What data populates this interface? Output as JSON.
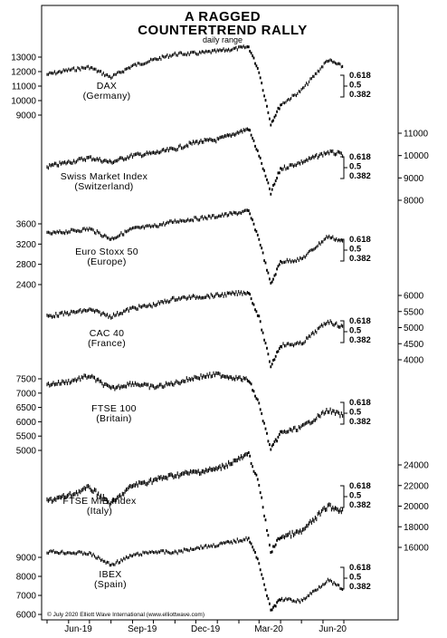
{
  "chart_data": {
    "type": "line",
    "title_line1": "A RAGGED",
    "title_line2": "COUNTERTREND RALLY",
    "subtitle": "daily range",
    "credit": "© July 2020 Elliott Wave International (www.elliottwave.com)",
    "x_ticks": [
      "Jun-19",
      "Sep-19",
      "Dec-19",
      "Mar-20",
      "Jun-20"
    ],
    "fib_levels": [
      "0.618",
      "0.5",
      "0.382"
    ],
    "colors": {
      "line": "#000000",
      "background": "#ffffff"
    },
    "panels": [
      {
        "label_line1": "DAX",
        "label_line2": "(Germany)",
        "axis_side": "left",
        "y_ticks": [
          "13000",
          "12000",
          "11000",
          "10000",
          "9000"
        ],
        "y_tick_values": [
          13000,
          12000,
          11000,
          10000,
          9000
        ],
        "x": [
          "2019-05",
          "2019-06",
          "2019-07",
          "2019-08",
          "2019-09",
          "2019-10",
          "2019-11",
          "2019-12",
          "2020-01",
          "2020-02-15",
          "2020-03-01",
          "2020-03-18",
          "2020-04-01",
          "2020-05-01",
          "2020-06-08",
          "2020-07-01"
        ],
        "values": [
          11800,
          12100,
          12300,
          11600,
          12400,
          12800,
          13200,
          13250,
          13400,
          13700,
          12000,
          8400,
          9700,
          10700,
          12800,
          12300
        ]
      },
      {
        "label_line1": "Swiss Market Index",
        "label_line2": "(Switzerland)",
        "axis_side": "right",
        "y_ticks": [
          "11000",
          "10000",
          "9000",
          "8000"
        ],
        "y_tick_values": [
          11000,
          10000,
          9000,
          8000
        ],
        "x": [
          "2019-05",
          "2019-06",
          "2019-07",
          "2019-08",
          "2019-09",
          "2019-10",
          "2019-11",
          "2019-12",
          "2020-01",
          "2020-02-15",
          "2020-03-01",
          "2020-03-18",
          "2020-04-01",
          "2020-05-01",
          "2020-06-08",
          "2020-07-01"
        ],
        "values": [
          9500,
          9700,
          9900,
          9700,
          10000,
          10100,
          10300,
          10600,
          10700,
          11200,
          10000,
          8300,
          9400,
          9700,
          10150,
          10050
        ]
      },
      {
        "label_line1": "Euro Stoxx 50",
        "label_line2": "(Europe)",
        "axis_side": "left",
        "y_ticks": [
          "3600",
          "3200",
          "2800",
          "2400"
        ],
        "y_tick_values": [
          3600,
          3200,
          2800,
          2400
        ],
        "x": [
          "2019-05",
          "2019-06",
          "2019-07",
          "2019-08",
          "2019-09",
          "2019-10",
          "2019-11",
          "2019-12",
          "2020-01",
          "2020-02-15",
          "2020-03-01",
          "2020-03-18",
          "2020-04-01",
          "2020-05-01",
          "2020-06-08",
          "2020-07-01"
        ],
        "values": [
          3400,
          3450,
          3500,
          3300,
          3500,
          3550,
          3650,
          3700,
          3750,
          3850,
          3300,
          2400,
          2850,
          2900,
          3350,
          3250
        ]
      },
      {
        "label_line1": "CAC 40",
        "label_line2": "(France)",
        "axis_side": "right",
        "y_ticks": [
          "6000",
          "5500",
          "5000",
          "4500",
          "4000"
        ],
        "y_tick_values": [
          6000,
          5500,
          5000,
          4500,
          4000
        ],
        "x": [
          "2019-05",
          "2019-06",
          "2019-07",
          "2019-08",
          "2019-09",
          "2019-10",
          "2019-11",
          "2019-12",
          "2020-01",
          "2020-02-15",
          "2020-03-01",
          "2020-03-18",
          "2020-04-01",
          "2020-05-01",
          "2020-06-08",
          "2020-07-01"
        ],
        "values": [
          5350,
          5450,
          5550,
          5350,
          5600,
          5700,
          5900,
          5950,
          6000,
          6100,
          5300,
          3800,
          4450,
          4500,
          5200,
          5000
        ]
      },
      {
        "label_line1": "FTSE 100",
        "label_line2": "(Britain)",
        "axis_side": "left",
        "y_ticks": [
          "7500",
          "7000",
          "6500",
          "6000",
          "5500",
          "5000"
        ],
        "y_tick_values": [
          7500,
          7000,
          6500,
          6000,
          5500,
          5000
        ],
        "x": [
          "2019-05",
          "2019-06",
          "2019-07",
          "2019-08",
          "2019-09",
          "2019-10",
          "2019-11",
          "2019-12",
          "2020-01",
          "2020-02-15",
          "2020-03-01",
          "2020-03-18",
          "2020-04-01",
          "2020-05-01",
          "2020-06-08",
          "2020-07-01"
        ],
        "values": [
          7300,
          7400,
          7600,
          7150,
          7350,
          7200,
          7350,
          7550,
          7650,
          7450,
          6600,
          5000,
          5600,
          5800,
          6400,
          6200
        ]
      },
      {
        "label_line1": "FTSE MIB Index",
        "label_line2": "(Italy)",
        "axis_side": "right",
        "y_ticks": [
          "24000",
          "22000",
          "20000",
          "18000",
          "16000"
        ],
        "y_tick_values": [
          24000,
          22000,
          20000,
          18000,
          16000
        ],
        "x": [
          "2019-05",
          "2019-06",
          "2019-07",
          "2019-08",
          "2019-09",
          "2019-10",
          "2019-11",
          "2019-12",
          "2020-01",
          "2020-02-15",
          "2020-03-01",
          "2020-03-18",
          "2020-04-01",
          "2020-05-01",
          "2020-06-08",
          "2020-07-01"
        ],
        "values": [
          20500,
          21000,
          21800,
          20200,
          22000,
          22500,
          23000,
          23300,
          23600,
          25000,
          22000,
          15500,
          17000,
          17500,
          20000,
          19500
        ]
      },
      {
        "label_line1": "IBEX",
        "label_line2": "(Spain)",
        "axis_side": "left",
        "y_ticks": [
          "9000",
          "8000",
          "7000",
          "6000"
        ],
        "y_tick_values": [
          9000,
          8000,
          7000,
          6000
        ],
        "x": [
          "2019-05",
          "2019-06",
          "2019-07",
          "2019-08",
          "2019-09",
          "2019-10",
          "2019-11",
          "2019-12",
          "2020-01",
          "2020-02-15",
          "2020-03-01",
          "2020-03-18",
          "2020-04-01",
          "2020-05-01",
          "2020-06-08",
          "2020-07-01"
        ],
        "values": [
          9300,
          9250,
          9200,
          8600,
          9100,
          9300,
          9250,
          9500,
          9650,
          10000,
          8700,
          6200,
          6800,
          6700,
          7800,
          7300
        ]
      }
    ]
  }
}
